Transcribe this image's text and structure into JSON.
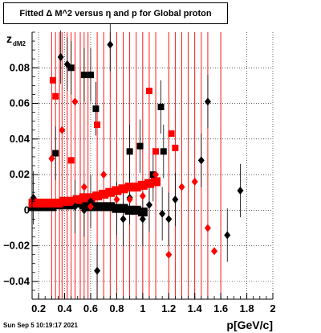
{
  "chart_data": {
    "type": "scatter",
    "title": "Fitted Δ M^2 versus η and p for Global proton",
    "xlabel": "p[GeV/c]",
    "ylabel": "z_dM2",
    "footer": "Sun Sep  5 10:19:17 2021",
    "xlim": [
      0.15,
      2.0
    ],
    "ylim": [
      -0.05,
      0.1
    ],
    "x_ticks": [
      0.2,
      0.4,
      0.6,
      0.8,
      1,
      1.2,
      1.4,
      1.6,
      1.8,
      2
    ],
    "x_tick_labels": [
      "0.2",
      "0.4",
      "0.6",
      "0.8",
      "1",
      "1.2",
      "1.4",
      "1.6",
      "1.8",
      "2"
    ],
    "y_ticks": [
      -0.04,
      -0.02,
      0,
      0.02,
      0.04,
      0.06,
      0.08
    ],
    "y_tick_labels": [
      "−0.04",
      "−0.02",
      "0",
      "0.02",
      "0.04",
      "0.06",
      "0.08"
    ],
    "grid": true,
    "series": [
      {
        "color": "#000000",
        "marker": "diamond",
        "points": [
          [
            0.16,
            0.007
          ],
          [
            0.37,
            0.086
          ],
          [
            0.42,
            0.082
          ],
          [
            0.48,
            0.002
          ],
          [
            0.55,
            0.0
          ],
          [
            0.6,
            0.005
          ],
          [
            0.65,
            -0.034
          ],
          [
            0.75,
            0.093
          ],
          [
            0.8,
            0.001
          ],
          [
            0.85,
            -0.005
          ],
          [
            0.9,
            0.007
          ],
          [
            1.0,
            -0.005
          ],
          [
            1.05,
            0.003
          ],
          [
            1.15,
            -0.002
          ],
          [
            1.2,
            -0.005
          ],
          [
            1.25,
            0.006
          ],
          [
            1.45,
            0.028
          ],
          [
            1.5,
            0.061
          ],
          [
            1.65,
            -0.014
          ],
          [
            1.75,
            0.011
          ]
        ]
      },
      {
        "color": "#000000",
        "marker": "square",
        "points": [
          [
            0.33,
            0.032
          ],
          [
            0.45,
            0.08
          ],
          [
            0.55,
            0.076
          ],
          [
            0.6,
            0.076
          ],
          [
            0.64,
            0.057
          ],
          [
            0.9,
            0.033
          ],
          [
            0.98,
            0.036
          ],
          [
            1.08,
            0.02
          ],
          [
            1.14,
            0.058
          ],
          [
            1.16,
            0.033
          ]
        ]
      },
      {
        "color": "#ff0000",
        "marker": "diamond",
        "points": [
          [
            0.18,
            0.005
          ],
          [
            0.3,
            0.029
          ],
          [
            0.38,
            0.045
          ],
          [
            0.48,
            0.061
          ],
          [
            0.55,
            0.013
          ],
          [
            0.6,
            0.002
          ],
          [
            0.7,
            0.02
          ],
          [
            0.8,
            0.006
          ],
          [
            0.9,
            0.006
          ],
          [
            1.0,
            0.008
          ],
          [
            1.1,
            0.02
          ],
          [
            1.2,
            -0.025
          ],
          [
            1.3,
            0.013
          ],
          [
            1.4,
            0.016
          ],
          [
            1.5,
            -0.01
          ],
          [
            1.55,
            -0.023
          ]
        ]
      },
      {
        "color": "#ff0000",
        "marker": "square",
        "points": [
          [
            0.31,
            0.073
          ],
          [
            0.33,
            0.064
          ],
          [
            0.45,
            0.028
          ],
          [
            0.65,
            0.048
          ],
          [
            1.05,
            0.067
          ],
          [
            1.1,
            0.033
          ],
          [
            1.22,
            0.043
          ],
          [
            1.25,
            0.035
          ]
        ]
      }
    ],
    "band": {
      "black": {
        "x": [
          0.16,
          0.2,
          0.25,
          0.3,
          0.35,
          0.4,
          0.45,
          0.5,
          0.55,
          0.6,
          0.65,
          0.7,
          0.75,
          0.8,
          0.85,
          0.9,
          0.95,
          1.0
        ],
        "y": [
          0.002,
          0.002,
          0.002,
          0.002,
          0.003,
          0.003,
          0.003,
          0.004,
          0.003,
          0.002,
          0.002,
          0.002,
          0.002,
          0.001,
          0.001,
          0.0,
          0.0,
          -0.001
        ]
      },
      "red": {
        "x": [
          0.16,
          0.2,
          0.25,
          0.3,
          0.35,
          0.4,
          0.45,
          0.5,
          0.55,
          0.6,
          0.65,
          0.7,
          0.75,
          0.8,
          0.85,
          0.9,
          0.95,
          1.0,
          1.05,
          1.1
        ],
        "y": [
          0.004,
          0.004,
          0.004,
          0.004,
          0.004,
          0.005,
          0.005,
          0.006,
          0.007,
          0.007,
          0.008,
          0.009,
          0.01,
          0.011,
          0.012,
          0.013,
          0.013,
          0.014,
          0.015,
          0.016
        ]
      }
    }
  }
}
